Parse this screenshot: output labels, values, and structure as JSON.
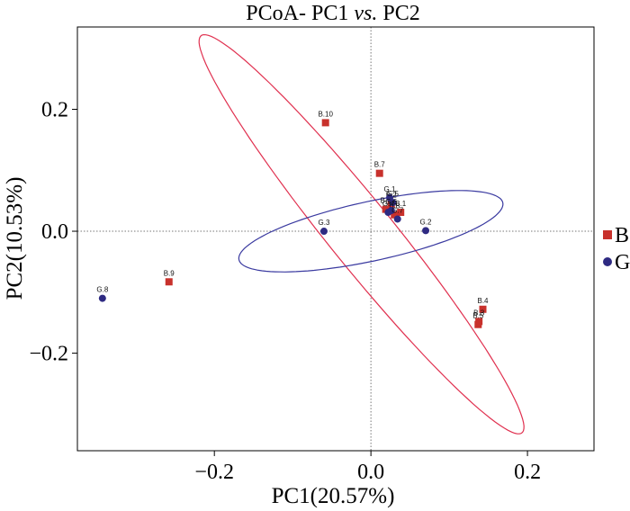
{
  "chart_data": {
    "type": "scatter",
    "title_prefix": "PCoA- PC1 ",
    "title_italic": "vs.",
    "title_suffix": " PC2",
    "xlabel": "PC1(20.57%)",
    "ylabel": "PC2(10.53%)",
    "xlim": [
      -0.375,
      0.285
    ],
    "ylim": [
      -0.36,
      0.335
    ],
    "xticks": [
      -0.2,
      0.0,
      0.2
    ],
    "yticks": [
      -0.2,
      0.0,
      0.2
    ],
    "xtick_labels": [
      "−0.2",
      "0.0",
      "0.2"
    ],
    "ytick_labels": [
      "−0.2",
      "0.0",
      "0.2"
    ],
    "grid": false,
    "reference_lines": {
      "x": 0,
      "y": 0
    },
    "legend_position": "right",
    "series": [
      {
        "name": "B",
        "color": "#c8312c",
        "ellipse_color": "#e0304f",
        "marker": "square",
        "points": [
          {
            "label": "B.10",
            "x": -0.058,
            "y": 0.178
          },
          {
            "label": "B.7",
            "x": 0.011,
            "y": 0.095
          },
          {
            "label": "B.9",
            "x": -0.258,
            "y": -0.083
          },
          {
            "label": "B.4",
            "x": 0.143,
            "y": -0.128
          },
          {
            "label": "B.3",
            "x": 0.138,
            "y": -0.148
          },
          {
            "label": "B.5",
            "x": 0.137,
            "y": -0.153
          },
          {
            "label": "B.1",
            "x": 0.038,
            "y": 0.031
          },
          {
            "label": "B.2",
            "x": 0.026,
            "y": 0.045
          },
          {
            "label": "B.6",
            "x": 0.019,
            "y": 0.036
          },
          {
            "label": "B.8",
            "x": 0.03,
            "y": 0.027
          }
        ],
        "ellipse": {
          "cx": -0.012,
          "cy": -0.005,
          "rx": 0.385,
          "ry": 0.045,
          "angle_deg": -58
        }
      },
      {
        "name": "G",
        "color": "#2e2a82",
        "ellipse_color": "#3a3aa0",
        "marker": "circle",
        "points": [
          {
            "label": "G.8",
            "x": -0.343,
            "y": -0.11
          },
          {
            "label": "G.3",
            "x": -0.06,
            "y": 0.0
          },
          {
            "label": "G.2",
            "x": 0.07,
            "y": 0.001
          },
          {
            "label": "G.1",
            "x": 0.024,
            "y": 0.055
          },
          {
            "label": "G.5",
            "x": 0.028,
            "y": 0.047
          },
          {
            "label": "G.6",
            "x": 0.026,
            "y": 0.034
          },
          {
            "label": "G.7",
            "x": 0.034,
            "y": 0.02
          },
          {
            "label": "G.4",
            "x": 0.022,
            "y": 0.031
          }
        ],
        "ellipse": {
          "cx": 0.0,
          "cy": 0.0,
          "rx": 0.175,
          "ry": 0.048,
          "angle_deg": 16
        }
      }
    ]
  }
}
